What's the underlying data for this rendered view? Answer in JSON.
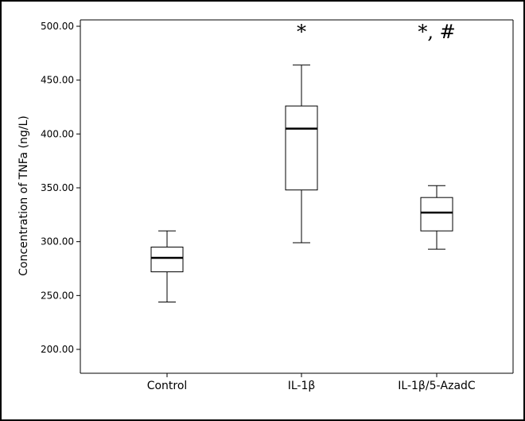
{
  "chart_data": {
    "type": "box",
    "ylabel": "Concentration of TNFa (ng/L)",
    "xlabel": "",
    "ylim": [
      200,
      500
    ],
    "yticks": [
      {
        "value": 200,
        "label": "200.00"
      },
      {
        "value": 250,
        "label": "250.00"
      },
      {
        "value": 300,
        "label": "300.00"
      },
      {
        "value": 350,
        "label": "350.00"
      },
      {
        "value": 400,
        "label": "400.00"
      },
      {
        "value": 450,
        "label": "450.00"
      },
      {
        "value": 500,
        "label": "500.00"
      }
    ],
    "grid": false,
    "categories": [
      "Control",
      "IL-1β",
      "IL-1β/5-AzadC"
    ],
    "boxes": [
      {
        "category": "Control",
        "min": 244,
        "q1": 272,
        "median": 285,
        "q3": 295,
        "max": 310,
        "annotation": ""
      },
      {
        "category": "IL-1β",
        "min": 299,
        "q1": 348,
        "median": 405,
        "q3": 426,
        "max": 464,
        "annotation": "*"
      },
      {
        "category": "IL-1β/5-AzadC",
        "min": 293,
        "q1": 310,
        "median": 327,
        "q3": 341,
        "max": 352,
        "annotation": "*, #"
      }
    ]
  }
}
